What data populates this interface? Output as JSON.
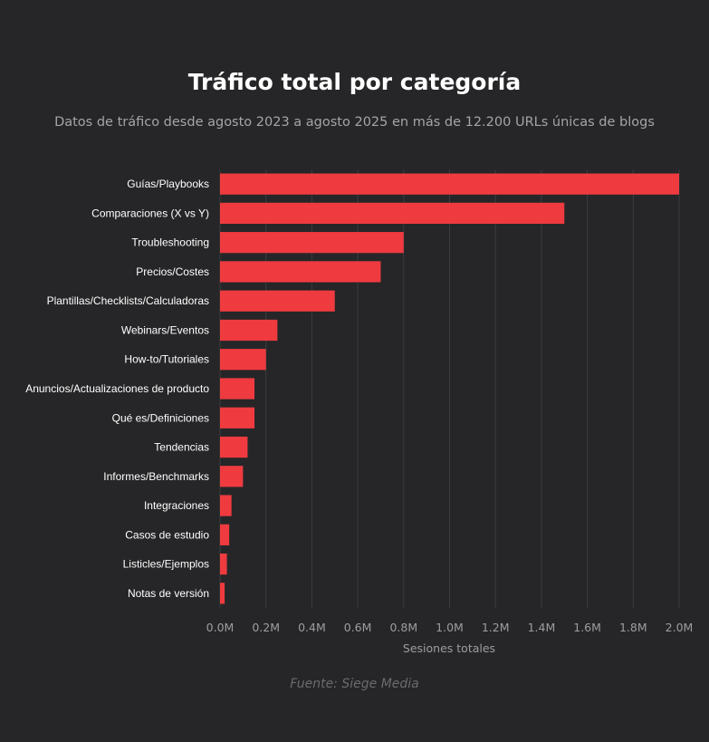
{
  "chart_data": {
    "type": "bar",
    "orientation": "horizontal",
    "title": "Tráfico total por categoría",
    "subtitle": "Datos de tráfico desde agosto 2023 a agosto 2025 en más de 12.200 URLs únicas de blogs",
    "source": "Fuente: Siege Media",
    "xlabel": "Sesiones totales",
    "ylabel": "",
    "xlim": [
      0,
      2000000
    ],
    "x_ticks": [
      0,
      200000,
      400000,
      600000,
      800000,
      1000000,
      1200000,
      1400000,
      1600000,
      1800000,
      2000000
    ],
    "x_tick_labels": [
      "0.0M",
      "0.2M",
      "0.4M",
      "0.6M",
      "0.8M",
      "1.0M",
      "1.2M",
      "1.4M",
      "1.6M",
      "1.8M",
      "2.0M"
    ],
    "grid": "vertical",
    "bar_color": "#ef3b3f",
    "categories": [
      "Guías/Playbooks",
      "Comparaciones (X vs Y)",
      "Troubleshooting",
      "Precios/Costes",
      "Plantillas/Checklists/Calculadoras",
      "Webinars/Eventos",
      "How-to/Tutoriales",
      "Anuncios/Actualizaciones de producto",
      "Qué es/Definiciones",
      "Tendencias",
      "Informes/Benchmarks",
      "Integraciones",
      "Casos de estudio",
      "Listicles/Ejemplos",
      "Notas de versión"
    ],
    "values": [
      2000000,
      1500000,
      800000,
      700000,
      500000,
      250000,
      200000,
      150000,
      150000,
      120000,
      100000,
      50000,
      40000,
      30000,
      20000
    ]
  }
}
